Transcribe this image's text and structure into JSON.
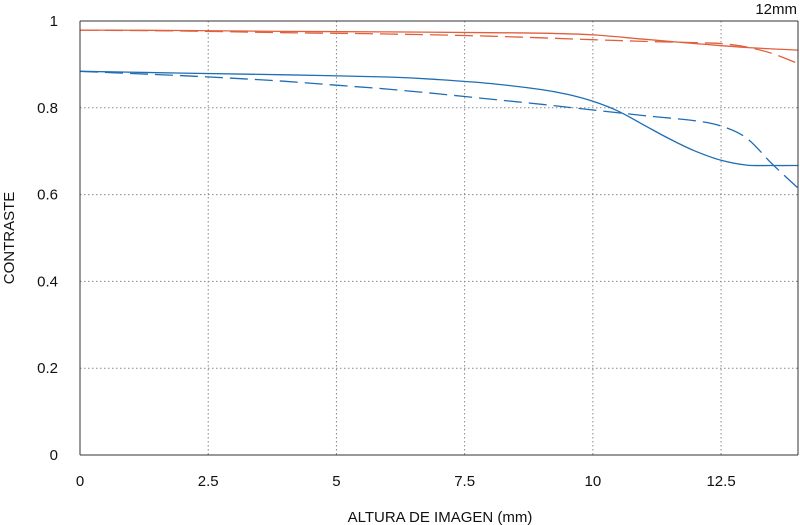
{
  "chart_data": {
    "type": "line",
    "corner_label": "12mm",
    "xlabel": "ALTURA DE IMAGEN (mm)",
    "ylabel": "CONTRASTE",
    "xlim": [
      0,
      14
    ],
    "ylim": [
      0,
      1
    ],
    "x_ticks": [
      0,
      2.5,
      5,
      7.5,
      10,
      12.5
    ],
    "x_tick_labels": [
      "0",
      "2.5",
      "5",
      "7.5",
      "10",
      "12.5"
    ],
    "y_ticks": [
      0,
      0.2,
      0.4,
      0.6,
      0.8,
      1
    ],
    "y_tick_labels": [
      "0",
      "0.2",
      "0.4",
      "0.6",
      "0.8",
      "1"
    ],
    "grid": true,
    "colors": {
      "red": "#e0603e",
      "blue": "#1f6db5",
      "grid": "#888888",
      "axis": "#333333"
    },
    "series": [
      {
        "color": "#e0603e",
        "dash": "solid",
        "x": [
          0,
          2,
          4,
          6,
          8,
          9,
          10,
          11,
          12,
          13,
          14
        ],
        "y": [
          0.979,
          0.978,
          0.976,
          0.975,
          0.973,
          0.972,
          0.968,
          0.958,
          0.948,
          0.939,
          0.933
        ]
      },
      {
        "color": "#e0603e",
        "dash": "dashed",
        "x": [
          0,
          2,
          4,
          6,
          8,
          10,
          11,
          12,
          12.5,
          13,
          13.5,
          14
        ],
        "y": [
          0.979,
          0.977,
          0.973,
          0.97,
          0.965,
          0.957,
          0.953,
          0.95,
          0.948,
          0.94,
          0.925,
          0.902
        ]
      },
      {
        "color": "#1f6db5",
        "dash": "solid",
        "x": [
          0,
          2,
          4,
          6,
          7,
          8,
          9,
          9.5,
          10,
          10.5,
          11,
          11.5,
          12,
          12.5,
          13,
          13.5,
          14
        ],
        "y": [
          0.884,
          0.88,
          0.876,
          0.871,
          0.865,
          0.856,
          0.842,
          0.831,
          0.815,
          0.792,
          0.76,
          0.728,
          0.7,
          0.679,
          0.668,
          0.667,
          0.667
        ]
      },
      {
        "color": "#1f6db5",
        "dash": "dashed",
        "x": [
          0,
          1,
          2,
          3,
          4,
          5,
          6,
          7,
          8,
          9,
          10,
          11,
          12,
          12.5,
          13,
          13.5,
          14
        ],
        "y": [
          0.884,
          0.879,
          0.874,
          0.868,
          0.861,
          0.852,
          0.843,
          0.832,
          0.82,
          0.808,
          0.795,
          0.782,
          0.77,
          0.758,
          0.73,
          0.67,
          0.615
        ]
      }
    ]
  }
}
